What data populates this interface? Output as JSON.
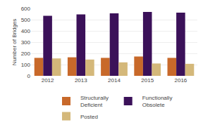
{
  "chart_data": {
    "type": "bar",
    "categories": [
      "2012",
      "2013",
      "2014",
      "2015",
      "2016"
    ],
    "series": [
      {
        "name": "Structurally\nDeficient",
        "color": "#C8692A",
        "values": [
          160,
          165,
          160,
          172,
          160
        ]
      },
      {
        "name": "Functionally\nObsolete",
        "color": "#3B1159",
        "values": [
          535,
          547,
          557,
          568,
          562
        ]
      },
      {
        "name": "Posted",
        "color": "#D4B87A",
        "values": [
          155,
          145,
          120,
          110,
          107
        ]
      }
    ],
    "ylabel": "Number of Bridges",
    "ylim": [
      0,
      600
    ],
    "yticks": [
      0,
      100,
      200,
      300,
      400,
      500,
      600
    ],
    "grid": true,
    "legend": "bottom"
  }
}
